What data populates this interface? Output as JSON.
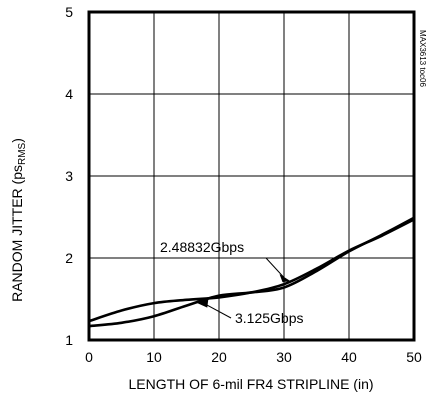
{
  "chart_data": {
    "type": "line",
    "title": "",
    "xlabel": "LENGTH OF 6-mil FR4 STRIPLINE (in)",
    "ylabel_main": "RANDOM JITTER (ps",
    "ylabel_sub": "RMS",
    "ylabel_close": ")",
    "xlim": [
      0,
      50
    ],
    "ylim": [
      1,
      5
    ],
    "xticks": [
      "0",
      "10",
      "20",
      "30",
      "40",
      "50"
    ],
    "yticks": [
      "1",
      "2",
      "3",
      "4",
      "5"
    ],
    "grid": true,
    "line_color": "#000000",
    "series": [
      {
        "name": "2.48832Gbps",
        "x": [
          0,
          5,
          10,
          15,
          20,
          25,
          30,
          35,
          40,
          45,
          50
        ],
        "y": [
          1.23,
          1.36,
          1.45,
          1.49,
          1.52,
          1.58,
          1.68,
          1.87,
          2.09,
          2.27,
          2.47
        ]
      },
      {
        "name": "3.125Gbps",
        "x": [
          0,
          5,
          10,
          15,
          20,
          25,
          30,
          35,
          40,
          45,
          50
        ],
        "y": [
          1.17,
          1.21,
          1.29,
          1.42,
          1.54,
          1.58,
          1.64,
          1.84,
          2.08,
          2.28,
          2.49
        ]
      }
    ],
    "annotations": [
      {
        "text": "2.48832Gbps",
        "series": 0,
        "at_x": 31.0
      },
      {
        "text": "3.125Gbps",
        "series": 1,
        "at_x": 16.5
      }
    ],
    "side_code": "MAX3613 toc06"
  }
}
